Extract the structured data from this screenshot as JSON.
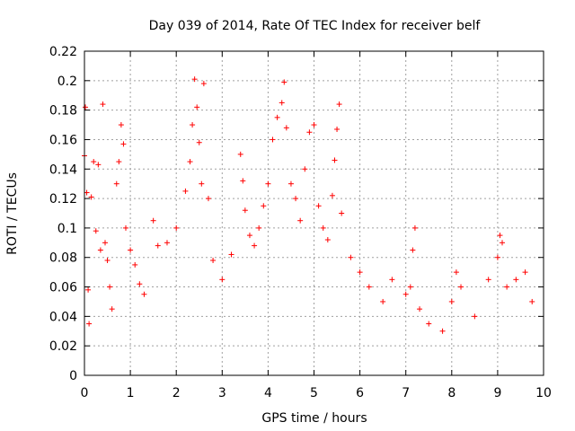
{
  "chart_data": {
    "type": "scatter",
    "title": "Day 039 of 2014, Rate Of TEC Index for receiver belf",
    "xlabel": "GPS time / hours",
    "ylabel": "ROTI / TECUs",
    "xlim": [
      0,
      10
    ],
    "ylim": [
      0,
      0.22
    ],
    "x_ticks": [
      0,
      1,
      2,
      3,
      4,
      5,
      6,
      7,
      8,
      9,
      10
    ],
    "x_tick_labels": [
      "0",
      "1",
      "2",
      "3",
      "4",
      "5",
      "6",
      "7",
      "8",
      "9",
      "10"
    ],
    "y_ticks": [
      0,
      0.02,
      0.04,
      0.06,
      0.08,
      0.1,
      0.12,
      0.14,
      0.16,
      0.18,
      0.2,
      0.22
    ],
    "y_tick_labels": [
      "0",
      "0.02",
      "0.04",
      "0.06",
      "0.08",
      "0.1",
      "0.12",
      "0.14",
      "0.16",
      "0.18",
      "0.2",
      "0.22"
    ],
    "grid": true,
    "marker": "+",
    "color": "#ff0000",
    "series": [
      {
        "name": "ROTI",
        "points": [
          [
            0.0,
            0.149
          ],
          [
            0.02,
            0.182
          ],
          [
            0.05,
            0.124
          ],
          [
            0.08,
            0.058
          ],
          [
            0.1,
            0.035
          ],
          [
            0.15,
            0.121
          ],
          [
            0.2,
            0.145
          ],
          [
            0.25,
            0.098
          ],
          [
            0.3,
            0.143
          ],
          [
            0.35,
            0.085
          ],
          [
            0.4,
            0.184
          ],
          [
            0.45,
            0.09
          ],
          [
            0.5,
            0.078
          ],
          [
            0.55,
            0.06
          ],
          [
            0.6,
            0.045
          ],
          [
            0.7,
            0.13
          ],
          [
            0.75,
            0.145
          ],
          [
            0.8,
            0.17
          ],
          [
            0.85,
            0.157
          ],
          [
            0.9,
            0.1
          ],
          [
            1.0,
            0.085
          ],
          [
            1.1,
            0.075
          ],
          [
            1.2,
            0.062
          ],
          [
            1.3,
            0.055
          ],
          [
            1.5,
            0.105
          ],
          [
            1.6,
            0.088
          ],
          [
            1.8,
            0.09
          ],
          [
            2.0,
            0.1
          ],
          [
            2.2,
            0.125
          ],
          [
            2.3,
            0.145
          ],
          [
            2.35,
            0.17
          ],
          [
            2.4,
            0.201
          ],
          [
            2.45,
            0.182
          ],
          [
            2.5,
            0.158
          ],
          [
            2.55,
            0.13
          ],
          [
            2.6,
            0.198
          ],
          [
            2.7,
            0.12
          ],
          [
            2.8,
            0.078
          ],
          [
            3.0,
            0.065
          ],
          [
            3.2,
            0.082
          ],
          [
            3.4,
            0.15
          ],
          [
            3.45,
            0.132
          ],
          [
            3.5,
            0.112
          ],
          [
            3.6,
            0.095
          ],
          [
            3.7,
            0.088
          ],
          [
            3.8,
            0.1
          ],
          [
            3.9,
            0.115
          ],
          [
            4.0,
            0.13
          ],
          [
            4.1,
            0.16
          ],
          [
            4.2,
            0.175
          ],
          [
            4.3,
            0.185
          ],
          [
            4.35,
            0.199
          ],
          [
            4.4,
            0.168
          ],
          [
            4.5,
            0.13
          ],
          [
            4.6,
            0.12
          ],
          [
            4.7,
            0.105
          ],
          [
            4.8,
            0.14
          ],
          [
            4.9,
            0.165
          ],
          [
            5.0,
            0.17
          ],
          [
            5.1,
            0.115
          ],
          [
            5.2,
            0.1
          ],
          [
            5.3,
            0.092
          ],
          [
            5.4,
            0.122
          ],
          [
            5.45,
            0.146
          ],
          [
            5.5,
            0.167
          ],
          [
            5.55,
            0.184
          ],
          [
            5.6,
            0.11
          ],
          [
            5.8,
            0.08
          ],
          [
            6.0,
            0.07
          ],
          [
            6.2,
            0.06
          ],
          [
            6.5,
            0.05
          ],
          [
            6.7,
            0.065
          ],
          [
            7.0,
            0.055
          ],
          [
            7.1,
            0.06
          ],
          [
            7.15,
            0.085
          ],
          [
            7.2,
            0.1
          ],
          [
            7.3,
            0.045
          ],
          [
            7.5,
            0.035
          ],
          [
            7.8,
            0.03
          ],
          [
            8.0,
            0.05
          ],
          [
            8.1,
            0.07
          ],
          [
            8.2,
            0.06
          ],
          [
            8.5,
            0.04
          ],
          [
            8.8,
            0.065
          ],
          [
            9.0,
            0.08
          ],
          [
            9.05,
            0.095
          ],
          [
            9.1,
            0.09
          ],
          [
            9.2,
            0.06
          ],
          [
            9.4,
            0.065
          ],
          [
            9.6,
            0.07
          ],
          [
            9.75,
            0.05
          ]
        ]
      }
    ]
  }
}
